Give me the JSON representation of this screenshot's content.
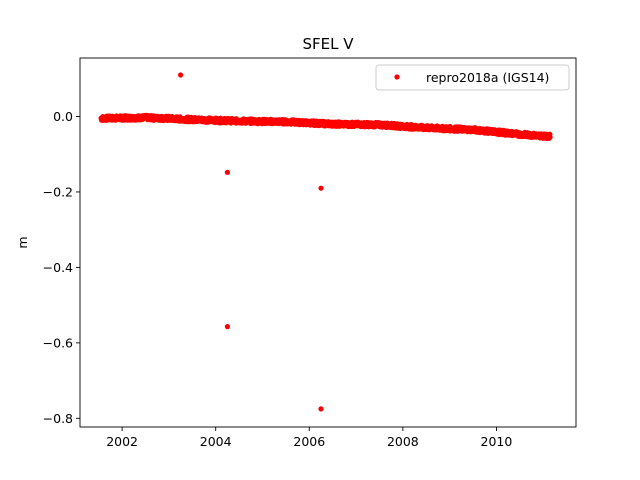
{
  "chart_data": {
    "type": "scatter",
    "title": "SFEL V",
    "xlabel": "",
    "ylabel": "m",
    "xlim": [
      2001.1,
      2011.7
    ],
    "ylim": [
      -0.823,
      0.155
    ],
    "xticks": [
      2002,
      2004,
      2006,
      2008,
      2010
    ],
    "yticks": [
      0.0,
      -0.2,
      -0.4,
      -0.6,
      -0.8
    ],
    "xtick_labels": [
      "2002",
      "2004",
      "2006",
      "2008",
      "2010"
    ],
    "ytick_labels": [
      "0.0",
      "−0.2",
      "−0.4",
      "−0.6",
      "−0.8"
    ],
    "grid": false,
    "legend_position": "top-right",
    "series": [
      {
        "name": "repro2018a (IGS14)",
        "color": "#ff0000",
        "marker": "circle",
        "trend": {
          "x_start": 2001.55,
          "x_end": 2011.15,
          "anchors": [
            [
              2001.55,
              -0.005
            ],
            [
              2002.5,
              -0.003
            ],
            [
              2003.5,
              -0.008
            ],
            [
              2004.5,
              -0.012
            ],
            [
              2005.5,
              -0.014
            ],
            [
              2006.5,
              -0.02
            ],
            [
              2007.5,
              -0.022
            ],
            [
              2008.5,
              -0.03
            ],
            [
              2009.5,
              -0.035
            ],
            [
              2010.5,
              -0.047
            ],
            [
              2011.15,
              -0.053
            ]
          ],
          "spread": 0.006,
          "step_years": 0.0055
        },
        "outliers": [
          {
            "x": 2003.25,
            "y": 0.11
          },
          {
            "x": 2004.25,
            "y": -0.148
          },
          {
            "x": 2004.25,
            "y": -0.557
          },
          {
            "x": 2006.25,
            "y": -0.19
          },
          {
            "x": 2006.25,
            "y": -0.775
          }
        ]
      }
    ]
  }
}
